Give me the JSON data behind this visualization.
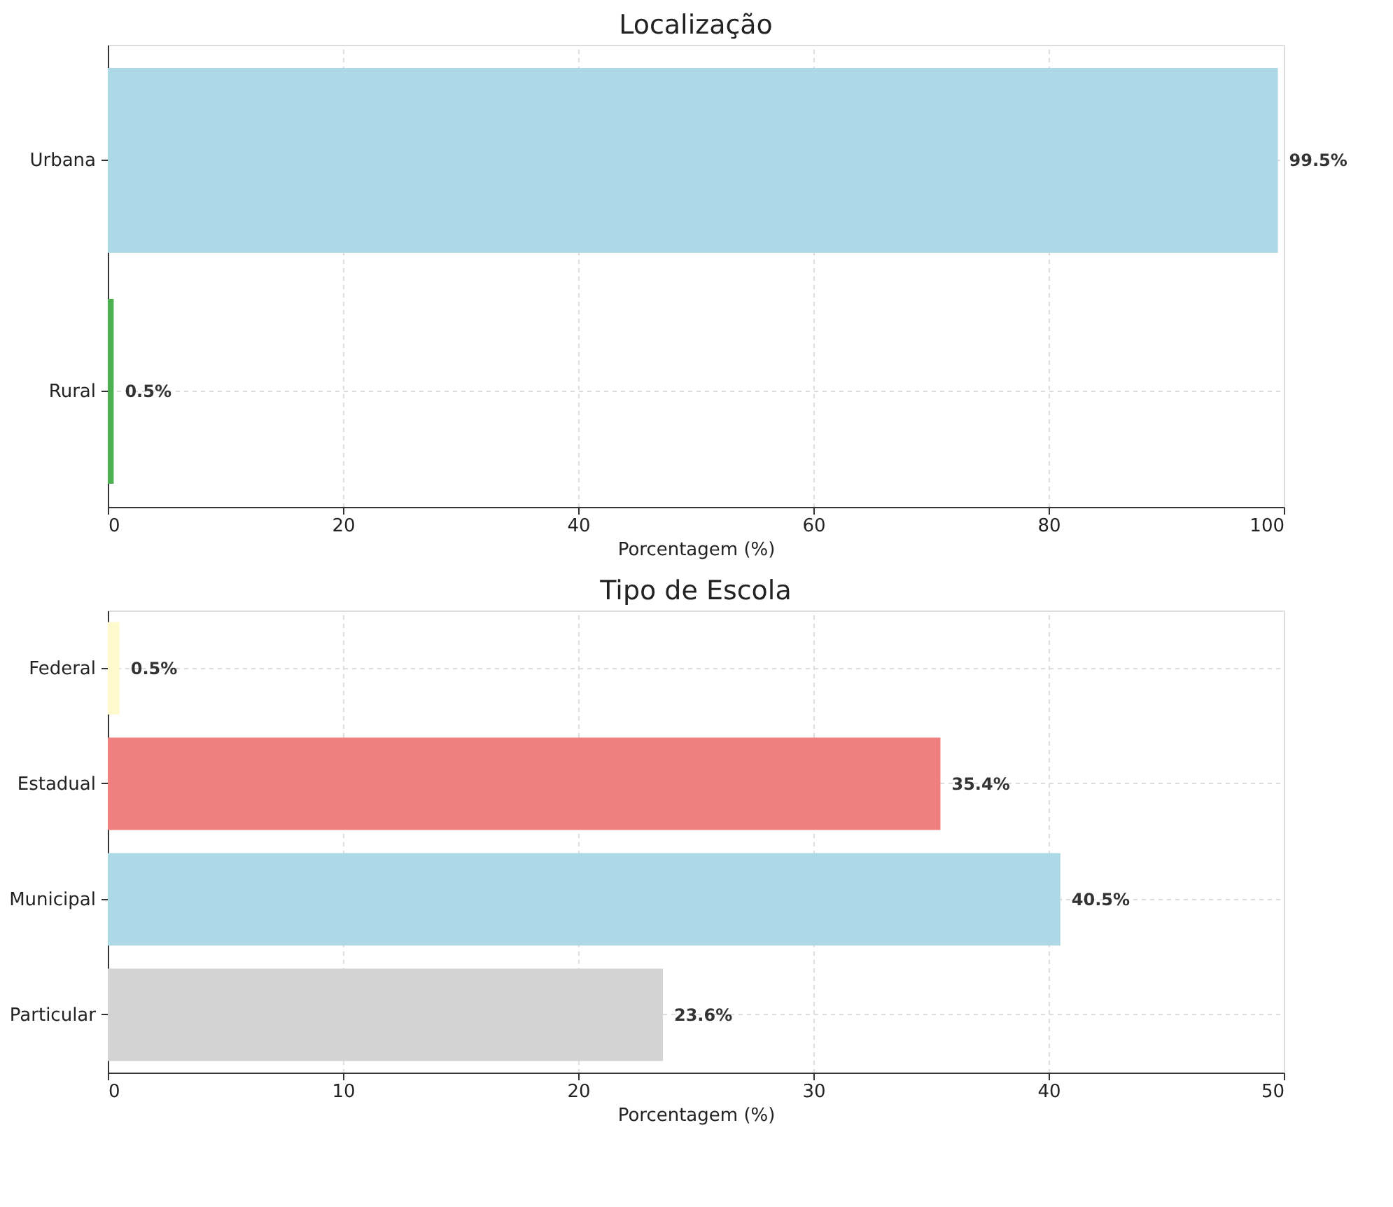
{
  "chart_data": [
    {
      "type": "bar",
      "orientation": "horizontal",
      "title": "Localização",
      "xlabel": "Porcentagem (%)",
      "categories": [
        "Urbana",
        "Rural"
      ],
      "values": [
        99.5,
        0.5
      ],
      "colors": [
        "#add8e6",
        "#4caf50"
      ],
      "value_labels": [
        "99.5%",
        "0.5%"
      ],
      "xlim": [
        0,
        100
      ],
      "xticks": [
        0,
        20,
        40,
        60,
        80,
        100
      ],
      "grid": true,
      "legend": false
    },
    {
      "type": "bar",
      "orientation": "horizontal",
      "title": "Tipo de Escola",
      "xlabel": "Porcentagem (%)",
      "categories": [
        "Federal",
        "Estadual",
        "Municipal",
        "Particular"
      ],
      "values": [
        0.5,
        35.4,
        40.5,
        23.6
      ],
      "colors": [
        "#fffacd",
        "#f08080",
        "#add8e6",
        "#d3d3d3"
      ],
      "value_labels": [
        "0.5%",
        "35.4%",
        "40.5%",
        "23.6%"
      ],
      "xlim": [
        0,
        50
      ],
      "xticks": [
        0,
        10,
        20,
        30,
        40,
        50
      ],
      "grid": true,
      "legend": false
    }
  ]
}
